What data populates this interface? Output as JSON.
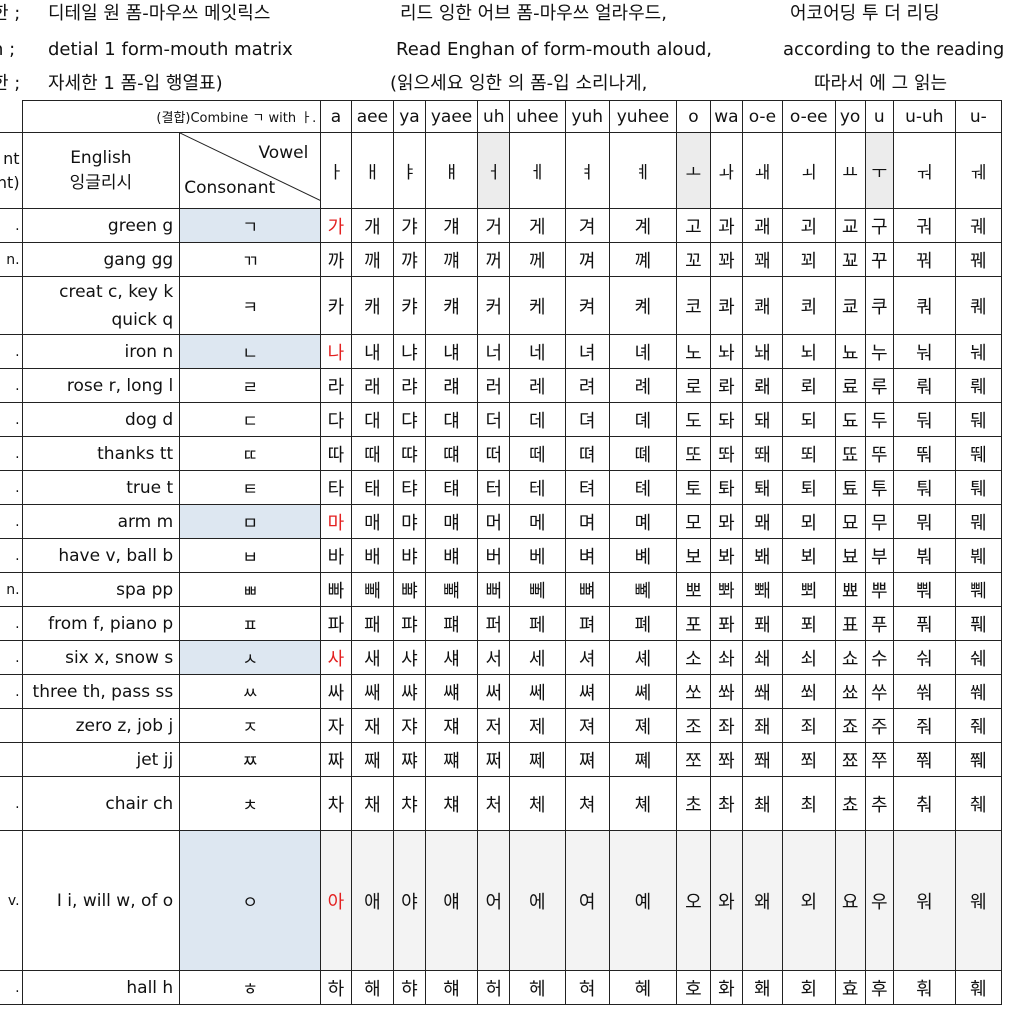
{
  "header": {
    "line1": [
      "한 ;",
      "디테일 원 폼-마우쓰 메잇릭스",
      "리드  잉한  어브 폼-마우쓰 얼라우드,",
      "어코어딩  투  더   리딩"
    ],
    "line2": [
      "h ;",
      "detial 1 form-mouth matrix",
      "Read Enghan of form-mouth aloud,",
      "according to the reading"
    ],
    "line3": [
      "한 ;",
      "자세한  1 폼-입     행열표)",
      "(읽으세요 잉한  의     폼-입  소리나게,",
      "따라서   에  그   읽는"
    ]
  },
  "left_col": {
    "head": [
      "nt",
      "nt)"
    ],
    "marks": [
      ".",
      "n.",
      "",
      ".",
      ".",
      ".",
      ".",
      ".",
      ".",
      ".",
      "n.",
      ".",
      ".",
      ".",
      "",
      "",
      ".",
      "v.",
      ".",
      "."
    ]
  },
  "labels": {
    "combine": "(결합)Combine ㄱ with ㅏ.",
    "english": "English",
    "english_kr": "잉글리시",
    "vowel": "Vowel",
    "consonant": "Consonant"
  },
  "vowel_roman": [
    "a",
    "aee",
    "ya",
    "yaee",
    "uh",
    "uhee",
    "yuh",
    "yuhee",
    "o",
    "wa",
    "o-e",
    "o-ee",
    "yo",
    "u",
    "u-uh",
    "u-"
  ],
  "vowel_jamo": [
    "ㅏ",
    "ㅐ",
    "ㅑ",
    "ㅒ",
    "ㅓ",
    "ㅔ",
    "ㅕ",
    "ㅖ",
    "ㅗ",
    "ㅘ",
    "ㅙ",
    "ㅚ",
    "ㅛ",
    "ㅜ",
    "ㅝ",
    "ㅞ"
  ],
  "rows": [
    {
      "english": "green  g",
      "consonant": "ㄱ",
      "syllables": [
        "가",
        "개",
        "갸",
        "걔",
        "거",
        "게",
        "겨",
        "계",
        "고",
        "과",
        "괘",
        "괴",
        "교",
        "구",
        "궈",
        "궤"
      ]
    },
    {
      "english": "gang  gg",
      "consonant": "ㄲ",
      "syllables": [
        "까",
        "깨",
        "꺄",
        "꺠",
        "꺼",
        "께",
        "껴",
        "꼐",
        "꼬",
        "꽈",
        "꽤",
        "꾀",
        "꾜",
        "꾸",
        "꿔",
        "꿰"
      ]
    },
    {
      "english": "creat c, key k",
      "english2": "quick q",
      "consonant": "ㅋ",
      "syllables": [
        "카",
        "캐",
        "캬",
        "컈",
        "커",
        "케",
        "켜",
        "켸",
        "코",
        "콰",
        "쾌",
        "쾨",
        "쿄",
        "쿠",
        "쿼",
        "퀘"
      ]
    },
    {
      "english": "iron  n",
      "consonant": "ㄴ",
      "syllables": [
        "나",
        "내",
        "냐",
        "냬",
        "너",
        "네",
        "녀",
        "녜",
        "노",
        "놔",
        "놰",
        "뇌",
        "뇨",
        "누",
        "눠",
        "눼"
      ]
    },
    {
      "english": "rose r, long l",
      "consonant": "ㄹ",
      "syllables": [
        "라",
        "래",
        "랴",
        "럐",
        "러",
        "레",
        "려",
        "례",
        "로",
        "롸",
        "뢔",
        "뢰",
        "료",
        "루",
        "뤄",
        "뤠"
      ]
    },
    {
      "english": "dog  d",
      "consonant": "ㄷ",
      "syllables": [
        "다",
        "대",
        "댜",
        "댸",
        "더",
        "데",
        "뎌",
        "뎨",
        "도",
        "돠",
        "돼",
        "되",
        "됴",
        "두",
        "둬",
        "뒈"
      ]
    },
    {
      "english": "thanks  tt",
      "consonant": "ㄸ",
      "syllables": [
        "따",
        "때",
        "땨",
        "떄",
        "떠",
        "떼",
        "뗘",
        "뗴",
        "또",
        "똬",
        "뙈",
        "뙤",
        "뚀",
        "뚜",
        "뚸",
        "뛔"
      ]
    },
    {
      "english": "true  t",
      "consonant": "ㅌ",
      "syllables": [
        "타",
        "태",
        "탸",
        "턔",
        "터",
        "테",
        "텨",
        "톄",
        "토",
        "톼",
        "퇘",
        "퇴",
        "툐",
        "투",
        "퉈",
        "퉤"
      ]
    },
    {
      "english": "arm  m",
      "consonant": "ㅁ",
      "syllables": [
        "마",
        "매",
        "먀",
        "먜",
        "머",
        "메",
        "며",
        "몌",
        "모",
        "뫄",
        "뫠",
        "뫼",
        "묘",
        "무",
        "뭐",
        "뭬"
      ]
    },
    {
      "english": "have v, ball b",
      "consonant": "ㅂ",
      "syllables": [
        "바",
        "배",
        "뱌",
        "뱨",
        "버",
        "베",
        "벼",
        "볘",
        "보",
        "봐",
        "봬",
        "뵈",
        "뵤",
        "부",
        "붜",
        "붸"
      ]
    },
    {
      "english": "spa  pp",
      "consonant": "ㅃ",
      "syllables": [
        "빠",
        "빼",
        "뺘",
        "뺴",
        "뻐",
        "뻬",
        "뼈",
        "뼤",
        "뽀",
        "뽜",
        "뽸",
        "뾔",
        "뾰",
        "뿌",
        "뿨",
        "쀄"
      ]
    },
    {
      "english": "from f, piano p",
      "consonant": "ㅍ",
      "syllables": [
        "파",
        "패",
        "퍄",
        "퍠",
        "퍼",
        "페",
        "펴",
        "폐",
        "포",
        "퐈",
        "퐤",
        "푀",
        "표",
        "푸",
        "풔",
        "풰"
      ]
    },
    {
      "english": "six x, snow s",
      "consonant": "ㅅ",
      "syllables": [
        "사",
        "새",
        "샤",
        "섀",
        "서",
        "세",
        "셔",
        "셰",
        "소",
        "솨",
        "쇄",
        "쇠",
        "쇼",
        "수",
        "숴",
        "쉐"
      ]
    },
    {
      "english": "three th, pass ss",
      "consonant": "ㅆ",
      "syllables": [
        "싸",
        "쌔",
        "쌰",
        "썌",
        "써",
        "쎄",
        "쎠",
        "쎼",
        "쏘",
        "쏴",
        "쐐",
        "쐬",
        "쑈",
        "쑤",
        "쒀",
        "쒜"
      ]
    },
    {
      "english": "zero z, job  j",
      "consonant": "ㅈ",
      "syllables": [
        "자",
        "재",
        "쟈",
        "쟤",
        "저",
        "제",
        "져",
        "졔",
        "조",
        "좌",
        "좨",
        "죄",
        "죠",
        "주",
        "줘",
        "줴"
      ]
    },
    {
      "english": "jet  jj",
      "consonant": "ㅉ",
      "syllables": [
        "짜",
        "째",
        "쨔",
        "쨰",
        "쩌",
        "쩨",
        "쪄",
        "쪠",
        "쪼",
        "쫘",
        "쫴",
        "쬐",
        "쬬",
        "쭈",
        "쭤",
        "쮀"
      ]
    },
    {
      "english": "chair  ch",
      "consonant": "ㅊ",
      "syllables": [
        "차",
        "채",
        "챠",
        "챼",
        "처",
        "체",
        "쳐",
        "쳬",
        "초",
        "촤",
        "쵀",
        "최",
        "쵸",
        "추",
        "춰",
        "췌"
      ]
    },
    {
      "english": "I i, will w, of o",
      "consonant": "ㅇ",
      "syllables": [
        "아",
        "애",
        "야",
        "얘",
        "어",
        "에",
        "여",
        "예",
        "오",
        "와",
        "왜",
        "외",
        "요",
        "우",
        "워",
        "웨"
      ]
    },
    {
      "english": "hall  h",
      "consonant": "ㅎ",
      "syllables": [
        "하",
        "해",
        "햐",
        "햬",
        "허",
        "헤",
        "혀",
        "혜",
        "호",
        "화",
        "홰",
        "회",
        "효",
        "후",
        "훠",
        "훼"
      ]
    }
  ],
  "colors": {
    "red": "#e32020",
    "highlight": "#dde7f1",
    "vowel_highlight": "#ececec",
    "big_row_bg": "#f3f3f3"
  }
}
